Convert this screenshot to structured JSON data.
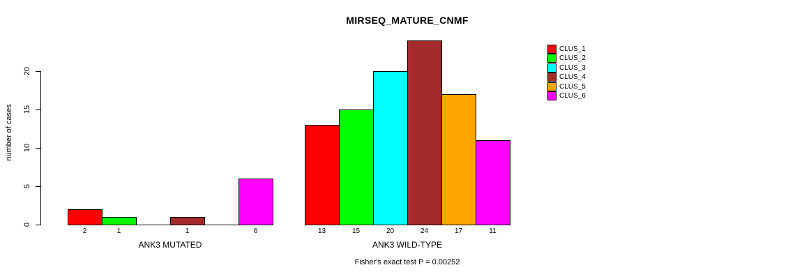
{
  "title": "MIRSEQ_MATURE_CNMF",
  "footer": "Fisher's exact test P = 0.00252",
  "chart_data": {
    "type": "bar",
    "title": "MIRSEQ_MATURE_CNMF",
    "xlabel": "",
    "ylabel": "number of cases",
    "ylim": [
      0,
      20
    ],
    "yticks": [
      0,
      5,
      10,
      15,
      20
    ],
    "grid": false,
    "legend_position": "right-outside",
    "series_names": [
      "CLUS_1",
      "CLUS_2",
      "CLUS_3",
      "CLUS_4",
      "CLUS_5",
      "CLUS_6"
    ],
    "series_colors": [
      "#FF0000",
      "#00FF00",
      "#00FFFF",
      "#A52A2A",
      "#FFA500",
      "#FF00FF"
    ],
    "groups": [
      {
        "label": "ANK3 MUTATED",
        "values": [
          2,
          1,
          0,
          1,
          0,
          6
        ],
        "bar_labels": [
          "2",
          "1",
          "",
          "1",
          "",
          "6"
        ]
      },
      {
        "label": "ANK3 WILD-TYPE",
        "values": [
          13,
          15,
          20,
          24,
          17,
          11
        ],
        "bar_labels": [
          "13",
          "15",
          "20",
          "24",
          "17",
          "11"
        ]
      }
    ],
    "annotation": "Fisher's exact test P = 0.00252"
  }
}
